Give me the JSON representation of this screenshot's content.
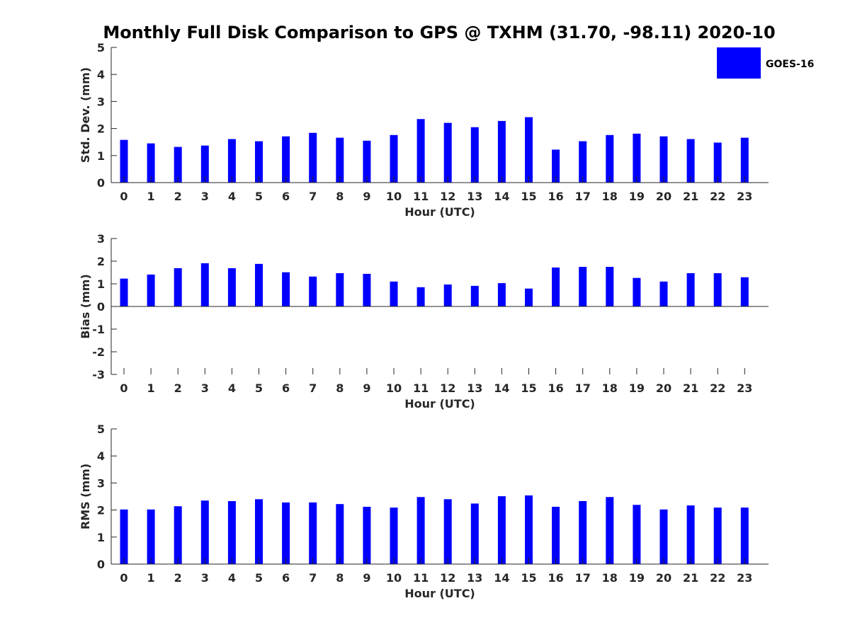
{
  "figure": {
    "title": "Monthly Full Disk Comparison to GPS @ TXHM (31.70, -98.11) 2020-10"
  },
  "legend": {
    "label": "GOES-16",
    "color": "#0000ff",
    "placement": "top-right"
  },
  "chart_data": [
    {
      "type": "bar",
      "ylabel": "Std. Dev. (mm)",
      "xlabel": "Hour (UTC)",
      "ylim": [
        0,
        5
      ],
      "yticks": [
        0,
        1,
        2,
        3,
        4,
        5
      ],
      "categories": [
        "0",
        "1",
        "2",
        "3",
        "4",
        "5",
        "6",
        "7",
        "8",
        "9",
        "10",
        "11",
        "12",
        "13",
        "14",
        "15",
        "16",
        "17",
        "18",
        "19",
        "20",
        "21",
        "22",
        "23"
      ],
      "series": [
        {
          "name": "GOES-16",
          "color": "#0000ff",
          "values": [
            1.58,
            1.45,
            1.32,
            1.37,
            1.61,
            1.53,
            1.71,
            1.84,
            1.66,
            1.55,
            1.76,
            2.35,
            2.21,
            2.05,
            2.28,
            2.42,
            1.22,
            1.53,
            1.76,
            1.81,
            1.71,
            1.61,
            1.48,
            1.66
          ]
        }
      ]
    },
    {
      "type": "bar",
      "ylabel": "Bias (mm)",
      "xlabel": "Hour (UTC)",
      "ylim": [
        -3,
        3
      ],
      "yticks": [
        -3,
        -2,
        -1,
        0,
        1,
        2,
        3
      ],
      "categories": [
        "0",
        "1",
        "2",
        "3",
        "4",
        "5",
        "6",
        "7",
        "8",
        "9",
        "10",
        "11",
        "12",
        "13",
        "14",
        "15",
        "16",
        "17",
        "18",
        "19",
        "20",
        "21",
        "22",
        "23"
      ],
      "series": [
        {
          "name": "GOES-16",
          "color": "#0000ff",
          "values": [
            1.23,
            1.41,
            1.69,
            1.91,
            1.69,
            1.88,
            1.51,
            1.32,
            1.47,
            1.44,
            1.1,
            0.85,
            0.97,
            0.91,
            1.03,
            0.79,
            1.72,
            1.75,
            1.75,
            1.26,
            1.1,
            1.47,
            1.47,
            1.29
          ]
        }
      ]
    },
    {
      "type": "bar",
      "ylabel": "RMS (mm)",
      "xlabel": "Hour (UTC)",
      "ylim": [
        0,
        5
      ],
      "yticks": [
        0,
        1,
        2,
        3,
        4,
        5
      ],
      "categories": [
        "0",
        "1",
        "2",
        "3",
        "4",
        "5",
        "6",
        "7",
        "8",
        "9",
        "10",
        "11",
        "12",
        "13",
        "14",
        "15",
        "16",
        "17",
        "18",
        "19",
        "20",
        "21",
        "22",
        "23"
      ],
      "series": [
        {
          "name": "GOES-16",
          "color": "#0000ff",
          "values": [
            2.02,
            2.02,
            2.14,
            2.35,
            2.33,
            2.4,
            2.28,
            2.28,
            2.22,
            2.12,
            2.09,
            2.48,
            2.4,
            2.24,
            2.51,
            2.54,
            2.12,
            2.33,
            2.48,
            2.19,
            2.02,
            2.17,
            2.09,
            2.09
          ]
        }
      ]
    }
  ]
}
